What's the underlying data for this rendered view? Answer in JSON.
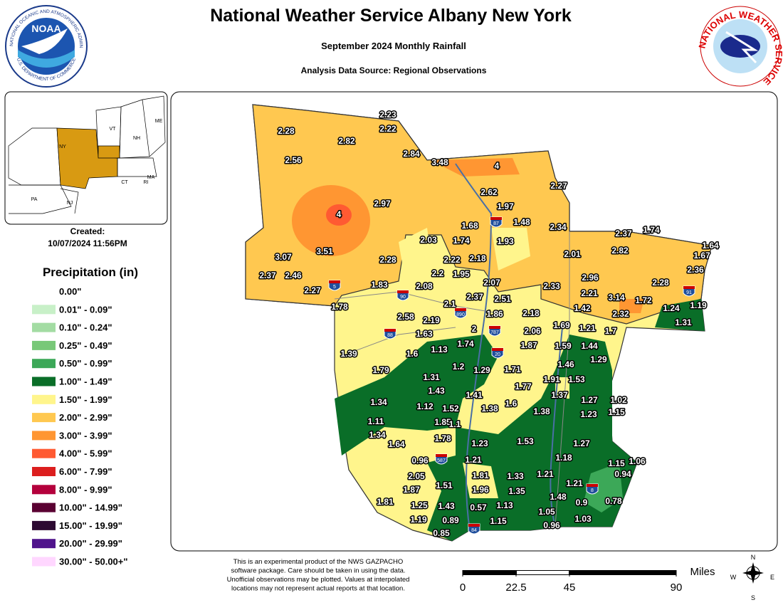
{
  "header": {
    "title": "National Weather Service Albany New York",
    "subtitle": "September 2024 Monthly Rainfall",
    "source": "Analysis Data Source: Regional Observations"
  },
  "logos": {
    "noaa": "NOAA",
    "noaa_ring_top": "NATIONAL OCEANIC AND ATMOSPHERIC ADMINISTRATION",
    "noaa_ring_bottom": "U.S. DEPARTMENT OF COMMERCE",
    "nws_ring": "NATIONAL WEATHER SERVICE"
  },
  "inset": {
    "states": [
      "VT",
      "NH",
      "ME",
      "NY",
      "MA",
      "CT",
      "RI",
      "PA",
      "NJ"
    ],
    "created_label": "Created:",
    "created": "10/07/2024 11:56PM"
  },
  "legend": {
    "title": "Precipitation (in)",
    "entries": [
      {
        "label": "0.00\"",
        "color": null
      },
      {
        "label": "0.01\" - 0.09\"",
        "color": "#c8f0c8"
      },
      {
        "label": "0.10\" - 0.24\"",
        "color": "#a3dca3"
      },
      {
        "label": "0.25\" - 0.49\"",
        "color": "#78c878"
      },
      {
        "label": "0.50\" - 0.99\"",
        "color": "#3ca858"
      },
      {
        "label": "1.00\" - 1.49\"",
        "color": "#0a6e28"
      },
      {
        "label": "1.50\" - 1.99\"",
        "color": "#fff58c"
      },
      {
        "label": "2.00\" - 2.99\"",
        "color": "#ffc850"
      },
      {
        "label": "3.00\" - 3.99\"",
        "color": "#ff9632"
      },
      {
        "label": "4.00\" - 5.99\"",
        "color": "#ff5a32"
      },
      {
        "label": "6.00\" - 7.99\"",
        "color": "#dc1e1e"
      },
      {
        "label": "8.00\" - 9.99\"",
        "color": "#b4003c"
      },
      {
        "label": "10.00\" - 14.99\"",
        "color": "#5a0032"
      },
      {
        "label": "15.00\" - 19.99\"",
        "color": "#2d0a32"
      },
      {
        "label": "20.00\" - 29.99\"",
        "color": "#50148c"
      },
      {
        "label": "30.00\" - 50.00+\"",
        "color": "#ffd7ff"
      }
    ]
  },
  "stations": [
    2.23,
    2.22,
    2.28,
    2.82,
    2.56,
    2.84,
    3.48,
    4,
    2.62,
    2.27,
    4,
    2.97,
    1.97,
    1.68,
    1.48,
    2.34,
    2.03,
    1.74,
    1.93,
    3.07,
    3.51,
    2.28,
    2.22,
    2.18,
    2.01,
    2.37,
    1.74,
    2.82,
    1.67,
    1.64,
    2.36,
    2.37,
    2.46,
    2.2,
    1.95,
    2.07,
    2.96,
    2.28,
    1.83,
    2.08,
    2.27,
    2.33,
    2.21,
    3.14,
    1.72,
    2.37,
    2.51,
    1.78,
    2.1,
    1.42,
    2.32,
    1.24,
    1.19,
    2.58,
    2.19,
    1.86,
    2.18,
    1.31,
    1.69,
    1.21,
    1.7,
    2,
    2.06,
    1.63,
    1.74,
    1.87,
    1.59,
    1.44,
    1.39,
    1.6,
    1.13,
    1.29,
    1.46,
    1.79,
    1.2,
    1.29,
    1.71,
    1.53,
    1.91,
    1.31,
    1.77,
    1.43,
    1.37,
    1.41,
    1.27,
    1.02,
    1.34,
    1.12,
    1.52,
    1.6,
    1.38,
    1.38,
    1.23,
    1.15,
    1.11,
    1.85,
    1.1,
    1.34,
    1.78,
    1.64,
    1.23,
    1.53,
    1.27,
    0.96,
    1.21,
    1.18,
    1.06,
    1.15,
    0.94,
    2.05,
    1.81,
    1.33,
    1.21,
    1.21,
    1.87,
    1.51,
    1.96,
    1.35,
    1.48,
    0.9,
    0.78,
    1.81,
    1.25,
    1.43,
    0.57,
    1.13,
    1.05,
    1.03,
    1.19,
    0.89,
    1.15,
    0.96,
    0.85
  ],
  "shields": [
    "87",
    "5",
    "90",
    "890",
    "787",
    "88",
    "20",
    "91",
    "587",
    "84",
    "8"
  ],
  "footnote": [
    "This is an experimental product of the NWS GAZPACHO",
    "software package. Care should be taken in using the data.",
    "Unofficial observations may be plotted. Values at interpolated",
    "locations may not represent actual reports at that location."
  ],
  "scale": {
    "unit": "Miles",
    "ticks": [
      0,
      22.5,
      45,
      90
    ],
    "range": [
      0,
      90
    ]
  },
  "compass": [
    "N",
    "E",
    "S",
    "W"
  ]
}
